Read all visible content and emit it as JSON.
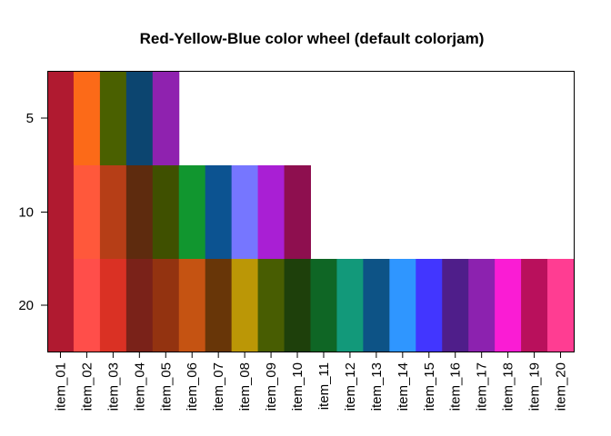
{
  "chart_data": {
    "type": "heatmap",
    "title": "Red-Yellow-Blue color wheel (default colorjam)",
    "xlabel": "",
    "ylabel": "",
    "categories": [
      "item_01",
      "item_02",
      "item_03",
      "item_04",
      "item_05",
      "item_06",
      "item_07",
      "item_08",
      "item_09",
      "item_10",
      "item_11",
      "item_12",
      "item_13",
      "item_14",
      "item_15",
      "item_16",
      "item_17",
      "item_18",
      "item_19",
      "item_20"
    ],
    "y_ticks": [
      5,
      10,
      20
    ],
    "rows": [
      {
        "n": 5,
        "colors": [
          "#B01A30",
          "#FC6A18",
          "#4A6000",
          "#0C4570",
          "#8F22AF"
        ]
      },
      {
        "n": 10,
        "colors": [
          "#B01A30",
          "#FF583B",
          "#B63E17",
          "#5E2B0E",
          "#3F5000",
          "#11962F",
          "#0C5391",
          "#7676FF",
          "#A91FD4",
          "#8E0F4F"
        ]
      },
      {
        "n": 20,
        "colors": [
          "#B01A30",
          "#FF4E4A",
          "#DA3124",
          "#7A2219",
          "#933310",
          "#C55312",
          "#683608",
          "#BB9706",
          "#485D02",
          "#1E400B",
          "#0F6625",
          "#12997A",
          "#0D5386",
          "#2F96FF",
          "#4236FF",
          "#4F1E8A",
          "#8C22AF",
          "#FA1CD4",
          "#B9105C",
          "#FF3D92"
        ]
      }
    ],
    "grid": false,
    "legend": "none"
  }
}
